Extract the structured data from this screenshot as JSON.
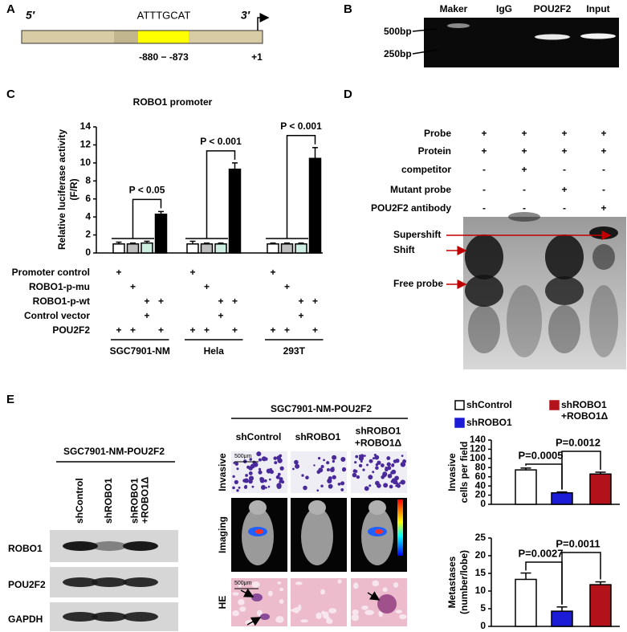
{
  "panel_labels": [
    "A",
    "B",
    "C",
    "D",
    "E"
  ],
  "panel_a": {
    "five_prime": "5′",
    "three_prime": "3′",
    "motif": "ATTTGCAT",
    "position": "-880 − -873",
    "tss": "+1"
  },
  "panel_b": {
    "lanes": [
      "Maker",
      "IgG",
      "POU2F2",
      "Input"
    ],
    "markers": [
      "500bp",
      "250bp"
    ]
  },
  "panel_d": {
    "rows": [
      {
        "name": "Probe",
        "cells": [
          "+",
          "+",
          "+",
          "+"
        ]
      },
      {
        "name": "Protein",
        "cells": [
          "+",
          "+",
          "+",
          "+"
        ]
      },
      {
        "name": "competitor",
        "cells": [
          "-",
          "+",
          "-",
          "-"
        ]
      },
      {
        "name": "Mutant probe",
        "cells": [
          "-",
          "-",
          "+",
          "-"
        ]
      },
      {
        "name": "POU2F2 antibody",
        "cells": [
          "-",
          "-",
          "-",
          "+"
        ]
      }
    ],
    "bands": [
      "Supershift",
      "Shift",
      "Free probe"
    ]
  },
  "panel_e": {
    "blot": {
      "title": "SGC7901-NM-POU2F2",
      "lanes": [
        [
          "shControl"
        ],
        [
          "shROBO1"
        ],
        [
          "shROBO1",
          "+ROBO1Δ"
        ]
      ],
      "rows": [
        "ROBO1",
        "POU2F2",
        "GAPDH"
      ]
    },
    "images": {
      "title": "SGC7901-NM-POU2F2",
      "columns": [
        [
          "shControl"
        ],
        [
          "shROBO1"
        ],
        [
          "shROBO1",
          "+ROBO1Δ"
        ]
      ],
      "rows": [
        "Invasive",
        "Imaging",
        "HE"
      ],
      "scale_bar": "500μm"
    }
  },
  "chart_data": [
    {
      "type": "bar",
      "title": "ROBO1 promoter",
      "y_label": [
        "Relative luciferase activity",
        "(F/R)"
      ],
      "categories": [
        "SGC7901-NM",
        "Hela",
        "293T"
      ],
      "series": [
        {
          "color": "#ffffff",
          "values": [
            1,
            1,
            1
          ],
          "errors": [
            0.2,
            0.3,
            0.1
          ]
        },
        {
          "color": "#bdbdbd",
          "values": [
            1,
            1,
            1
          ],
          "errors": [
            0.1,
            0.1,
            0.1
          ]
        },
        {
          "color": "#cdeee0",
          "values": [
            1.1,
            1,
            1
          ],
          "errors": [
            0.2,
            0.1,
            0.1
          ]
        },
        {
          "color": "#000000",
          "values": [
            4.3,
            9.3,
            10.5
          ],
          "errors": [
            0.3,
            0.7,
            1.2
          ]
        }
      ],
      "ylim": [
        0,
        14
      ],
      "yticks": [
        0,
        2,
        4,
        6,
        8,
        10,
        12,
        14
      ],
      "annotations": [
        "P < 0.05",
        "P < 0.001",
        "P < 0.001"
      ],
      "conditions": [
        {
          "name": "Promoter control",
          "marks": [
            "+",
            null,
            null,
            null,
            "+",
            null,
            null,
            null,
            "+",
            null,
            null,
            null
          ]
        },
        {
          "name": "ROBO1-p-mu",
          "marks": [
            null,
            "+",
            null,
            null,
            null,
            "+",
            null,
            null,
            null,
            "+",
            null,
            null
          ]
        },
        {
          "name": "ROBO1-p-wt",
          "marks": [
            null,
            null,
            "+",
            "+",
            null,
            null,
            "+",
            "+",
            null,
            null,
            "+",
            "+"
          ]
        },
        {
          "name": "Control vector",
          "marks": [
            null,
            null,
            "+",
            null,
            null,
            null,
            "+",
            null,
            null,
            null,
            "+",
            null
          ]
        },
        {
          "name": "POU2F2",
          "marks": [
            "+",
            "+",
            null,
            "+",
            "+",
            "+",
            null,
            "+",
            "+",
            "+",
            null,
            "+"
          ]
        }
      ]
    },
    {
      "type": "bar",
      "y_label": [
        "Invasive",
        "cells per field"
      ],
      "series": [
        {
          "name": "shControl",
          "color": "#ffffff",
          "values": [
            75
          ],
          "errors": [
            4
          ]
        },
        {
          "name": "shROBO1",
          "color": "#1c1cd6",
          "values": [
            25
          ],
          "errors": [
            2
          ]
        },
        {
          "name": "shROBO1\n+ROBO1Δ",
          "color": "#b3121a",
          "values": [
            66
          ],
          "errors": [
            4
          ]
        }
      ],
      "ylim": [
        0,
        140
      ],
      "yticks": [
        0,
        20,
        40,
        60,
        80,
        100,
        120,
        140
      ],
      "annotations": [
        "P=0.0005",
        "P=0.0012"
      ]
    },
    {
      "type": "bar",
      "y_label": [
        "Metastases",
        "(number/lobe)"
      ],
      "series": [
        {
          "color": "#ffffff",
          "values": [
            13.3
          ],
          "errors": [
            1.8
          ]
        },
        {
          "color": "#1c1cd6",
          "values": [
            4.3
          ],
          "errors": [
            1.2
          ]
        },
        {
          "color": "#b3121a",
          "values": [
            11.8
          ],
          "errors": [
            0.8
          ]
        }
      ],
      "ylim": [
        0,
        25
      ],
      "yticks": [
        0,
        5,
        10,
        15,
        20,
        25
      ],
      "annotations": [
        "P=0.0027",
        "P=0.0011"
      ]
    }
  ]
}
